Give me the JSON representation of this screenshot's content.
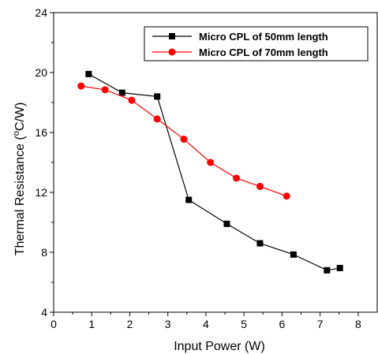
{
  "chart_data": {
    "type": "line",
    "xlabel": "Input Power (W)",
    "ylabel_parts": {
      "pre": "Thermal Resistance (",
      "sup": "o",
      "post": "C/W)"
    },
    "xlim": [
      0,
      8.5
    ],
    "ylim": [
      4,
      24
    ],
    "xticks": [
      0,
      1,
      2,
      3,
      4,
      5,
      6,
      7,
      8
    ],
    "yticks": [
      4,
      8,
      12,
      16,
      20,
      24
    ],
    "legend_position": "top-right",
    "series": [
      {
        "name": "Micro CPL of 50mm length",
        "color": "#000000",
        "marker": "square",
        "x": [
          0.92,
          1.8,
          2.72,
          3.55,
          4.55,
          5.42,
          6.3,
          7.18,
          7.52
        ],
        "y": [
          19.9,
          18.65,
          18.4,
          11.5,
          9.9,
          8.6,
          7.85,
          6.8,
          6.95
        ]
      },
      {
        "name": "Micro CPL of 70mm length",
        "color": "#ff0000",
        "marker": "circle",
        "x": [
          0.72,
          1.35,
          2.05,
          2.72,
          3.42,
          4.12,
          4.8,
          5.42,
          6.12
        ],
        "y": [
          19.1,
          18.85,
          18.15,
          16.9,
          15.55,
          14.0,
          12.95,
          12.4,
          11.75
        ]
      }
    ]
  }
}
